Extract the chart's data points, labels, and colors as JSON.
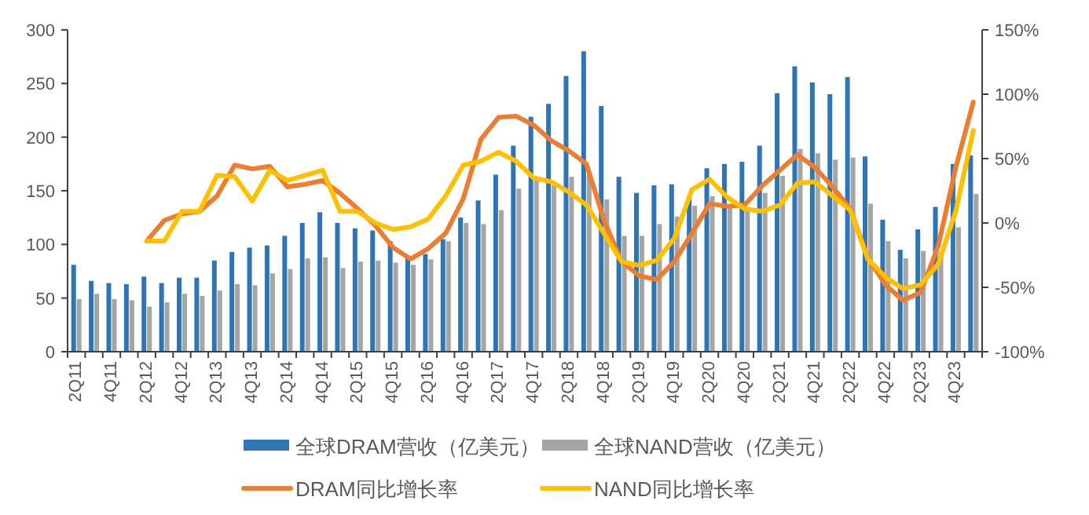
{
  "chart_data": {
    "type": "bar",
    "categories": [
      "2Q11",
      null,
      "4Q11",
      null,
      "2Q12",
      null,
      "4Q12",
      null,
      "2Q13",
      null,
      "4Q13",
      null,
      "2Q14",
      null,
      "4Q14",
      null,
      "2Q15",
      null,
      "4Q15",
      null,
      "2Q16",
      null,
      "4Q16",
      null,
      "2Q17",
      null,
      "4Q17",
      null,
      "2Q18",
      null,
      "4Q18",
      null,
      "2Q19",
      null,
      "4Q19",
      null,
      "2Q20",
      null,
      "4Q20",
      null,
      "2Q21",
      null,
      "4Q21",
      null,
      "2Q22",
      null,
      "4Q22",
      null,
      "2Q23",
      null,
      "4Q23",
      null
    ],
    "series": [
      {
        "name": "全球DRAM营收（亿美元）",
        "color": "#2e75b6",
        "values": [
          81,
          66,
          64,
          63,
          70,
          64,
          69,
          69,
          85,
          93,
          97,
          99,
          108,
          120,
          130,
          120,
          115,
          113,
          103,
          87,
          91,
          105,
          125,
          141,
          165,
          192,
          219,
          231,
          257,
          280,
          229,
          163,
          148,
          155,
          156,
          145,
          171,
          175,
          177,
          192,
          241,
          266,
          251,
          240,
          256,
          182,
          123,
          95,
          114,
          135,
          175,
          183
        ]
      },
      {
        "name": "全球NAND营收（亿美元）",
        "color": "#a5a5a5",
        "values": [
          49,
          54,
          49,
          48,
          42,
          46,
          54,
          52,
          57,
          63,
          62,
          73,
          77,
          87,
          88,
          78,
          84,
          85,
          83,
          81,
          86,
          103,
          120,
          119,
          132,
          152,
          162,
          155,
          163,
          165,
          142,
          108,
          108,
          119,
          126,
          136,
          145,
          134,
          133,
          148,
          164,
          189,
          185,
          179,
          181,
          138,
          103,
          87,
          94,
          93,
          116,
          147
        ]
      },
      {
        "name": "DRAM同比增长率",
        "type": "line",
        "axis": "y2",
        "color": "#ed7d31",
        "values": [
          null,
          null,
          null,
          null,
          -14,
          2,
          7,
          9,
          21,
          45,
          42,
          44,
          28,
          30,
          33,
          23,
          11,
          -2,
          -19,
          -28,
          -20,
          -8,
          19,
          65,
          82,
          83,
          76,
          64,
          56,
          46,
          2,
          -30,
          -41,
          -44,
          -30,
          -8,
          15,
          13,
          14,
          29,
          41,
          53,
          43,
          28,
          11,
          -27,
          -48,
          -60,
          -54,
          -18,
          43,
          94
        ]
      },
      {
        "name": "NAND同比增长率",
        "type": "line",
        "axis": "y2",
        "color": "#ffc000",
        "values": [
          null,
          null,
          null,
          null,
          -14,
          -14,
          9,
          9,
          37,
          36,
          17,
          41,
          33,
          37,
          41,
          9,
          9,
          0,
          -5,
          -3,
          3,
          21,
          45,
          48,
          55,
          48,
          35,
          32,
          24,
          14,
          -8,
          -30,
          -33,
          -29,
          -12,
          26,
          34,
          20,
          11,
          9,
          14,
          31,
          32,
          21,
          10,
          -28,
          -42,
          -51,
          -48,
          -32,
          9,
          72
        ]
      }
    ],
    "ylim": [
      0,
      300
    ],
    "yticks": [
      0,
      50,
      100,
      150,
      200,
      250,
      300
    ],
    "y2lim": [
      -100,
      150
    ],
    "y2ticks": [
      {
        "value": -100,
        "label": "-100%"
      },
      {
        "value": -50,
        "label": "-50%"
      },
      {
        "value": 0,
        "label": "0%"
      },
      {
        "value": 50,
        "label": "50%"
      },
      {
        "value": 100,
        "label": "100%"
      },
      {
        "value": 150,
        "label": "150%"
      }
    ],
    "grid": false,
    "legend": "bottom",
    "line_style": "solid",
    "marker": "none"
  }
}
